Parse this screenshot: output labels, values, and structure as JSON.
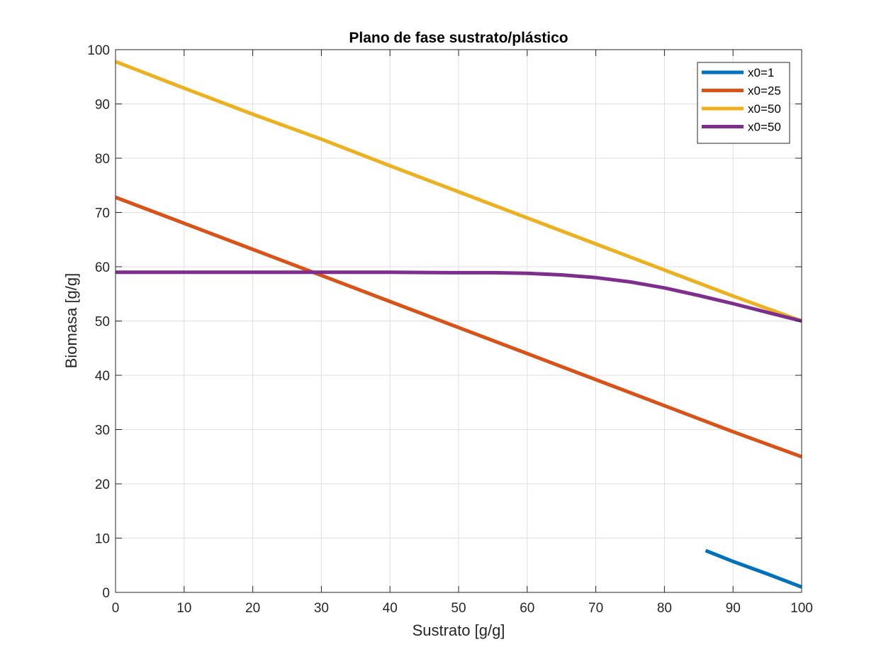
{
  "chart_data": {
    "type": "line",
    "title": "Plano de fase sustrato/plástico",
    "xlabel": "Sustrato [g/g]",
    "ylabel": "Biomasa [g/g]",
    "xlim": [
      0,
      100
    ],
    "ylim": [
      0,
      100
    ],
    "xticks": [
      "0",
      "10",
      "20",
      "30",
      "40",
      "50",
      "60",
      "70",
      "80",
      "90",
      "100"
    ],
    "yticks": [
      "0",
      "10",
      "20",
      "30",
      "40",
      "50",
      "60",
      "70",
      "80",
      "90",
      "100"
    ],
    "grid": true,
    "legend_position": "top-right",
    "series": [
      {
        "name": "x0=1",
        "color": "#0072BD",
        "x": [
          86,
          90,
          95,
          100
        ],
        "y": [
          7.7,
          5.7,
          3.4,
          1.0
        ]
      },
      {
        "name": "x0=25",
        "color": "#D95319",
        "x": [
          0,
          10,
          20,
          30,
          40,
          50,
          60,
          70,
          80,
          90,
          100
        ],
        "y": [
          72.8,
          68.0,
          63.2,
          58.4,
          53.6,
          48.8,
          44.0,
          39.2,
          34.4,
          29.6,
          25.0
        ]
      },
      {
        "name": "x0=50",
        "color": "#EDB120",
        "x": [
          0,
          10,
          20,
          30,
          40,
          50,
          60,
          70,
          80,
          90,
          100
        ],
        "y": [
          97.8,
          92.9,
          88.1,
          83.5,
          78.6,
          73.8,
          69.0,
          64.2,
          59.4,
          54.6,
          50.0
        ]
      },
      {
        "name": "x0=50",
        "color": "#7E2F8E",
        "x": [
          0,
          10,
          20,
          30,
          40,
          50,
          55,
          60,
          65,
          70,
          75,
          80,
          85,
          90,
          95,
          100
        ],
        "y": [
          59.0,
          59.0,
          59.0,
          59.0,
          59.0,
          58.9,
          58.9,
          58.8,
          58.5,
          58.0,
          57.2,
          56.1,
          54.7,
          53.2,
          51.6,
          50.0
        ]
      }
    ]
  }
}
